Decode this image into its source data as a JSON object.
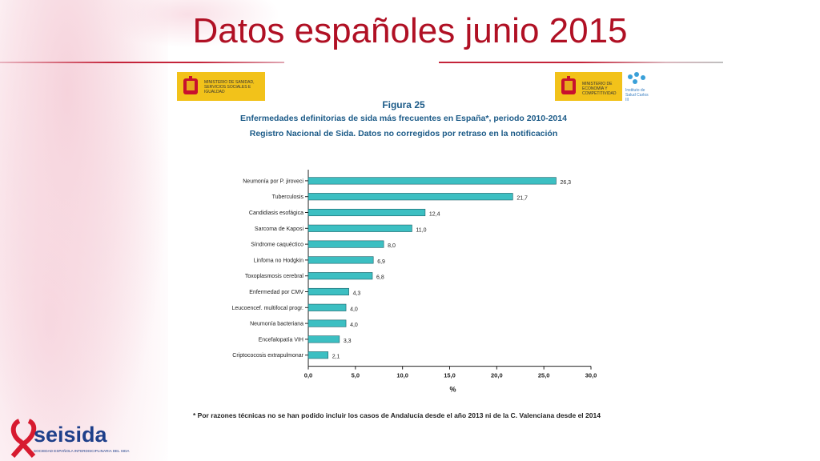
{
  "slide_title": "Datos españoles junio 2015",
  "logos": {
    "left_ministry": "MINISTERIO DE SANIDAD, SERVICIOS SOCIALES E IGUALDAD",
    "right_ministry": "MINISTERIO DE ECONOMÍA Y COMPETITIVIDAD",
    "right_institute": "Instituto de Salud Carlos III",
    "brand": "seisida",
    "brand_tagline": "SOCIEDAD ESPAÑOLA INTERDISCIPLINARIA DEL SIDA"
  },
  "figure": {
    "label": "Figura 25",
    "subtitle_1": "Enfermedades definitorias de sida más frecuentes en España*, periodo 2010-2014",
    "subtitle_2": "Registro Nacional de Sida. Datos no corregidos por retraso en la notificación",
    "footnote": "* Por razones técnicas no se han podido incluir los casos de Andalucía desde el año 2013 ni de la C. Valenciana desde el 2014"
  },
  "chart_data": {
    "type": "bar",
    "orientation": "horizontal",
    "categories": [
      "Neumonía por P. jiroveci",
      "Tuberculosis",
      "Candidiasis esofágica",
      "Sarcoma de Kaposi",
      "Síndrome caquéctico",
      "Linfoma no Hodgkin",
      "Toxoplasmosis cerebral",
      "Enfermedad por CMV",
      "Leucoencef. multifocal progr.",
      "Neumonía bacteriana",
      "Encefalopatía VIH",
      "Criptococosis extrapulmonar"
    ],
    "values": [
      26.3,
      21.7,
      12.4,
      11.0,
      8.0,
      6.9,
      6.8,
      4.3,
      4.0,
      4.0,
      3.3,
      2.1
    ],
    "value_labels": [
      "26,3",
      "21,7",
      "12,4",
      "11,0",
      "8,0",
      "6,9",
      "6,8",
      "4,3",
      "4,0",
      "4,0",
      "3,3",
      "2,1"
    ],
    "xticks": [
      "0,0",
      "5,0",
      "10,0",
      "15,0",
      "20,0",
      "25,0",
      "30,0"
    ],
    "xlabel": "%",
    "xlim": [
      0,
      30
    ],
    "bar_color": "#3cbfc2"
  }
}
